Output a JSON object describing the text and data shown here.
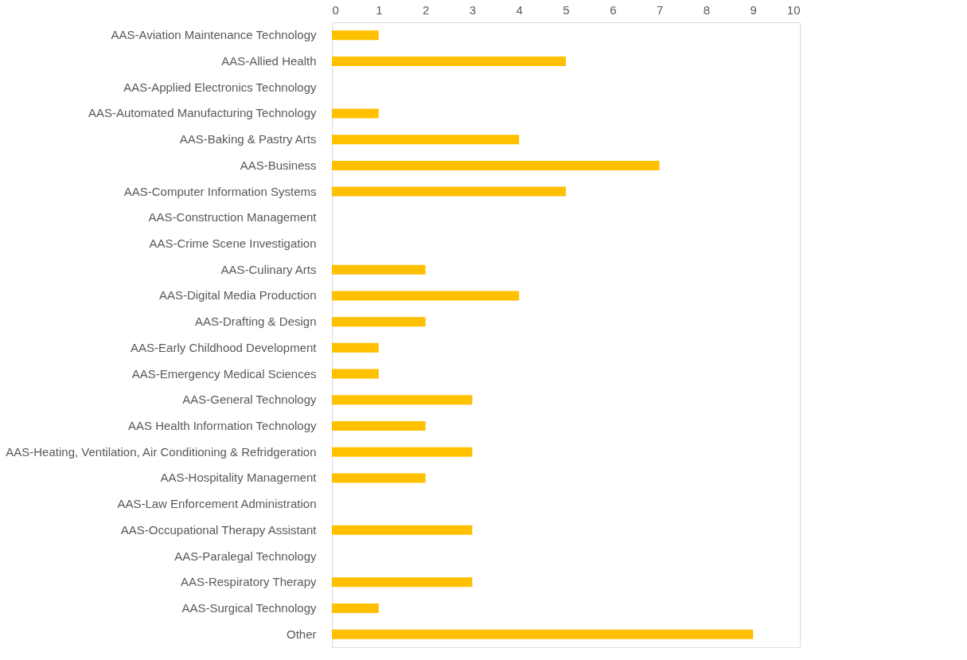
{
  "chart_data": {
    "type": "bar",
    "orientation": "horizontal",
    "categories": [
      "AAS-Aviation Maintenance Technology",
      "AAS-Allied Health",
      "AAS-Applied Electronics Technology",
      "AAS-Automated Manufacturing Technology",
      "AAS-Baking & Pastry Arts",
      "AAS-Business",
      "AAS-Computer Information Systems",
      "AAS-Construction Management",
      "AAS-Crime Scene Investigation",
      "AAS-Culinary Arts",
      "AAS-Digital Media Production",
      "AAS-Drafting & Design",
      "AAS-Early Childhood Development",
      "AAS-Emergency Medical Sciences",
      "AAS-General Technology",
      "AAS Health Information Technology",
      "AAS-Heating, Ventilation, Air Conditioning & Refridgeration",
      "AAS-Hospitality Management",
      "AAS-Law Enforcement Administration",
      "AAS-Occupational Therapy Assistant",
      "AAS-Paralegal Technology",
      "AAS-Respiratory Therapy",
      "AAS-Surgical Technology",
      "Other"
    ],
    "values": [
      1,
      5,
      0,
      1,
      4,
      7,
      5,
      0,
      0,
      2,
      4,
      2,
      1,
      1,
      3,
      2,
      3,
      2,
      0,
      3,
      0,
      3,
      1,
      9
    ],
    "color": "#ffc000",
    "xlim": [
      0,
      10
    ],
    "xticks": [
      0,
      1,
      2,
      3,
      4,
      5,
      6,
      7,
      8,
      9,
      10
    ],
    "grid": false
  }
}
